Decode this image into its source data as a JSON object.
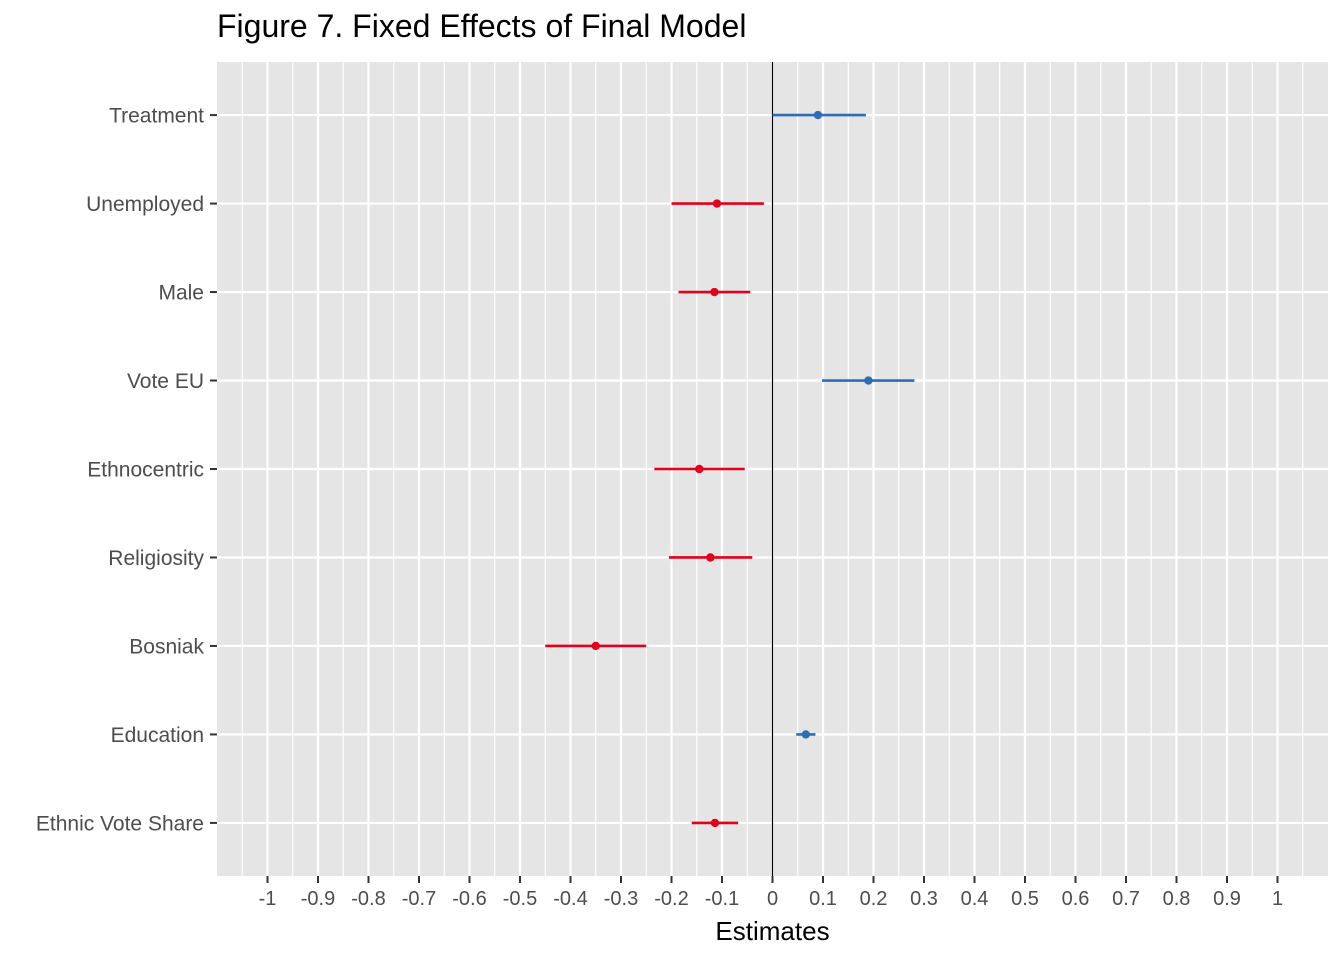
{
  "chart_data": {
    "type": "scatter",
    "title": "Figure 7. Fixed Effects of Final Model",
    "xlabel": "Estimates",
    "ylabel": "",
    "xlim": [
      -1.1,
      1.1
    ],
    "x_ticks": [
      "-1",
      "-0.9",
      "-0.8",
      "-0.7",
      "-0.6",
      "-0.5",
      "-0.4",
      "-0.3",
      "-0.2",
      "-0.1",
      "0",
      "0.1",
      "0.2",
      "0.3",
      "0.4",
      "0.5",
      "0.6",
      "0.7",
      "0.8",
      "0.9",
      "1"
    ],
    "x_tick_values": [
      -1,
      -0.9,
      -0.8,
      -0.7,
      -0.6,
      -0.5,
      -0.4,
      -0.3,
      -0.2,
      -0.1,
      0,
      0.1,
      0.2,
      0.3,
      0.4,
      0.5,
      0.6,
      0.7,
      0.8,
      0.9,
      1
    ],
    "reference_line_x": 0,
    "grid": true,
    "legend": "none",
    "colors": {
      "positive": "#2e6db4",
      "negative": "#e2001a",
      "panel": "#e5e5e5",
      "grid": "#ffffff",
      "reference": "#000000"
    },
    "terms": [
      {
        "label": "Treatment",
        "estimate": 0.09,
        "low": 0.0,
        "high": 0.185,
        "sign": "positive"
      },
      {
        "label": "Unemployed",
        "estimate": -0.11,
        "low": -0.2,
        "high": -0.017,
        "sign": "negative"
      },
      {
        "label": "Male",
        "estimate": -0.115,
        "low": -0.186,
        "high": -0.044,
        "sign": "negative"
      },
      {
        "label": "Vote EU",
        "estimate": 0.19,
        "low": 0.098,
        "high": 0.281,
        "sign": "positive"
      },
      {
        "label": "Ethnocentric",
        "estimate": -0.145,
        "low": -0.234,
        "high": -0.055,
        "sign": "negative"
      },
      {
        "label": "Religiosity",
        "estimate": -0.123,
        "low": -0.205,
        "high": -0.04,
        "sign": "negative"
      },
      {
        "label": "Bosniak",
        "estimate": -0.35,
        "low": -0.45,
        "high": -0.25,
        "sign": "negative"
      },
      {
        "label": "Education",
        "estimate": 0.066,
        "low": 0.047,
        "high": 0.085,
        "sign": "positive"
      },
      {
        "label": "Ethnic Vote Share",
        "estimate": -0.114,
        "low": -0.16,
        "high": -0.068,
        "sign": "negative"
      }
    ]
  }
}
